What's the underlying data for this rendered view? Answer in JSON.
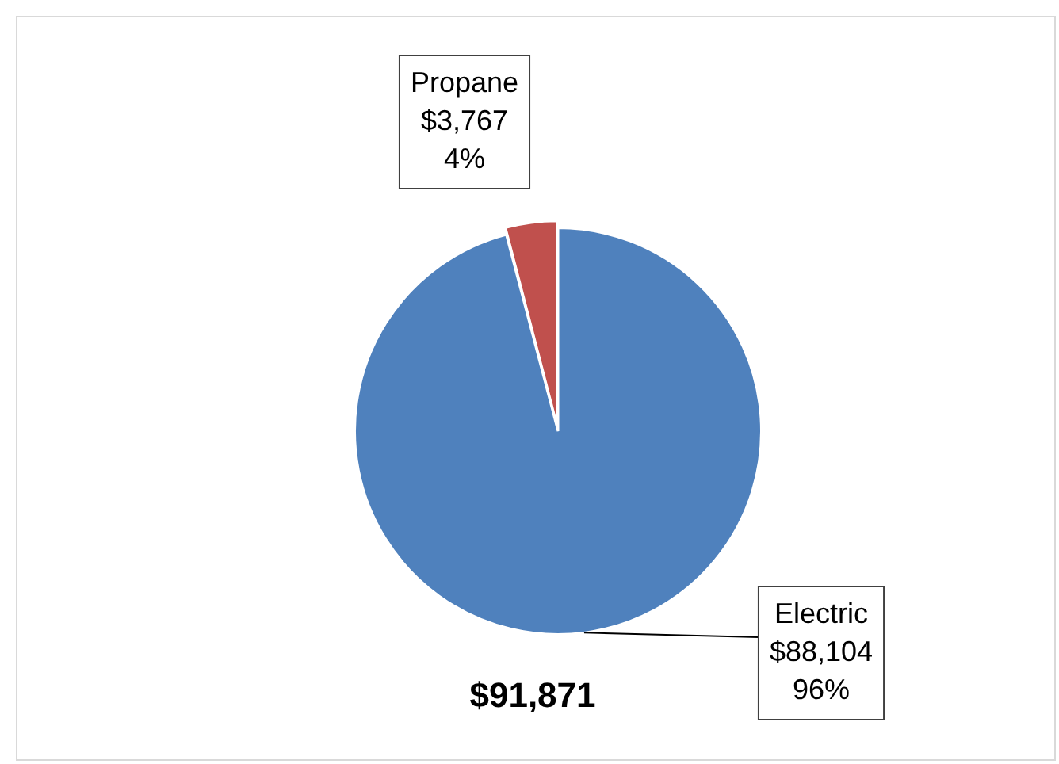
{
  "chart_data": {
    "type": "pie",
    "categories": [
      "Electric",
      "Propane"
    ],
    "values": [
      88104,
      3767
    ],
    "colors": [
      "#4f81bd",
      "#c0504d"
    ],
    "value_labels": [
      "$88,104\n96%",
      "$3,767\n4%"
    ],
    "annotations": [
      "$91,871"
    ],
    "legend": false
  }
}
